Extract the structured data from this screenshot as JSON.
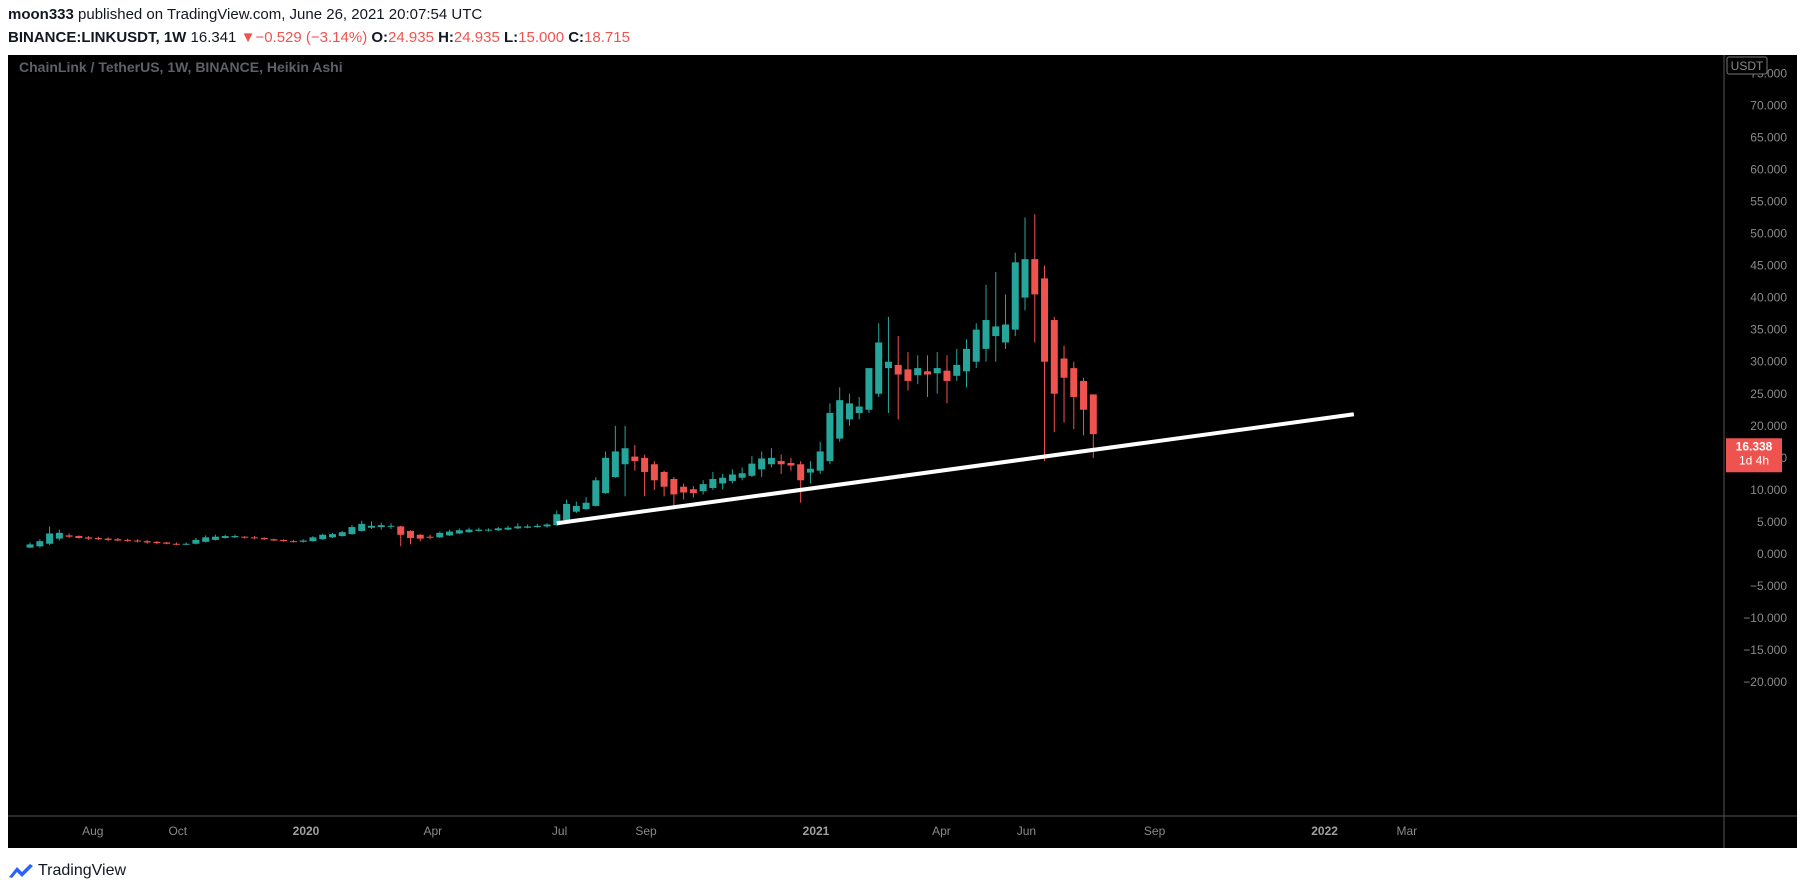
{
  "header": {
    "author": "moon333",
    "published_text": "published on TradingView.com, June 26, 2021 20:07:54 UTC",
    "symbol": "BINANCE:LINKUSDT,",
    "interval": "1W",
    "last_price": "16.341",
    "change_arrow": "▼",
    "change": "−0.529 (−3.14%)",
    "open_label": "O:",
    "open": "24.935",
    "high_label": "H:",
    "high": "24.935",
    "low_label": "L:",
    "low": "15.000",
    "close_label": "C:",
    "close": "18.715"
  },
  "chart_title": "ChainLink / TetherUS, 1W, BINANCE, Heikin Ashi",
  "currency_badge": "USDT",
  "price_badge": {
    "price": "16.338",
    "countdown": "1d 4h"
  },
  "footer": {
    "brand": "TradingView"
  },
  "colors": {
    "background": "#000000",
    "up": "#26a69a",
    "down": "#ef5350",
    "axis_text": "#8a8a8a",
    "trendline": "#ffffff"
  },
  "chart_data": {
    "type": "candlestick",
    "style": "Heikin Ashi",
    "title": "ChainLink / TetherUS, 1W, BINANCE, Heikin Ashi",
    "y_ticks": [
      "75.000",
      "70.000",
      "65.000",
      "60.000",
      "55.000",
      "50.000",
      "45.000",
      "40.000",
      "35.000",
      "30.000",
      "25.000",
      "20.000",
      "15.000",
      "10.000",
      "5.000",
      "0.000",
      "−5.000",
      "−10.000",
      "−15.000",
      "−20.000"
    ],
    "x_ticks": [
      {
        "label": "Aug",
        "bold": false,
        "date": "2019-08-01"
      },
      {
        "label": "Oct",
        "bold": false,
        "date": "2019-10-01"
      },
      {
        "label": "2020",
        "bold": true,
        "date": "2020-01-01"
      },
      {
        "label": "Apr",
        "bold": false,
        "date": "2020-04-01"
      },
      {
        "label": "Jul",
        "bold": false,
        "date": "2020-07-01"
      },
      {
        "label": "Sep",
        "bold": false,
        "date": "2020-09-01"
      },
      {
        "label": "2021",
        "bold": true,
        "date": "2021-01-01"
      },
      {
        "label": "Apr",
        "bold": false,
        "date": "2021-04-01"
      },
      {
        "label": "Jun",
        "bold": false,
        "date": "2021-06-01"
      },
      {
        "label": "Sep",
        "bold": false,
        "date": "2021-09-01"
      },
      {
        "label": "2022",
        "bold": true,
        "date": "2022-01-01"
      },
      {
        "label": "Mar",
        "bold": false,
        "date": "2022-03-01"
      }
    ],
    "ylim": [
      -23,
      78
    ],
    "candles": [
      {
        "d": "2019-06-17",
        "o": 1.0,
        "h": 1.8,
        "l": 0.9,
        "c": 1.5
      },
      {
        "d": "2019-06-24",
        "o": 1.2,
        "h": 2.3,
        "l": 1.0,
        "c": 2.0
      },
      {
        "d": "2019-07-01",
        "o": 1.6,
        "h": 4.3,
        "l": 1.4,
        "c": 3.2
      },
      {
        "d": "2019-07-08",
        "o": 2.4,
        "h": 3.8,
        "l": 2.1,
        "c": 3.3
      },
      {
        "d": "2019-07-15",
        "o": 2.9,
        "h": 3.2,
        "l": 2.5,
        "c": 2.7
      },
      {
        "d": "2019-07-22",
        "o": 2.8,
        "h": 2.9,
        "l": 2.4,
        "c": 2.5
      },
      {
        "d": "2019-07-29",
        "o": 2.6,
        "h": 2.8,
        "l": 2.2,
        "c": 2.4
      },
      {
        "d": "2019-08-05",
        "o": 2.5,
        "h": 2.7,
        "l": 2.2,
        "c": 2.3
      },
      {
        "d": "2019-08-12",
        "o": 2.4,
        "h": 2.6,
        "l": 2.0,
        "c": 2.2
      },
      {
        "d": "2019-08-19",
        "o": 2.3,
        "h": 2.5,
        "l": 2.0,
        "c": 2.1
      },
      {
        "d": "2019-08-26",
        "o": 2.2,
        "h": 2.4,
        "l": 1.9,
        "c": 2.1
      },
      {
        "d": "2019-09-02",
        "o": 2.1,
        "h": 2.3,
        "l": 1.8,
        "c": 2.0
      },
      {
        "d": "2019-09-09",
        "o": 2.0,
        "h": 2.2,
        "l": 1.6,
        "c": 1.8
      },
      {
        "d": "2019-09-16",
        "o": 1.9,
        "h": 2.0,
        "l": 1.5,
        "c": 1.7
      },
      {
        "d": "2019-09-23",
        "o": 1.8,
        "h": 1.9,
        "l": 1.5,
        "c": 1.6
      },
      {
        "d": "2019-09-30",
        "o": 1.6,
        "h": 1.8,
        "l": 1.4,
        "c": 1.5
      },
      {
        "d": "2019-10-07",
        "o": 1.5,
        "h": 1.8,
        "l": 1.4,
        "c": 1.6
      },
      {
        "d": "2019-10-14",
        "o": 1.6,
        "h": 2.5,
        "l": 1.5,
        "c": 2.2
      },
      {
        "d": "2019-10-21",
        "o": 1.9,
        "h": 2.9,
        "l": 1.8,
        "c": 2.6
      },
      {
        "d": "2019-10-28",
        "o": 2.2,
        "h": 3.0,
        "l": 2.1,
        "c": 2.7
      },
      {
        "d": "2019-11-04",
        "o": 2.5,
        "h": 3.0,
        "l": 2.4,
        "c": 2.8
      },
      {
        "d": "2019-11-11",
        "o": 2.6,
        "h": 3.0,
        "l": 2.5,
        "c": 2.8
      },
      {
        "d": "2019-11-18",
        "o": 2.7,
        "h": 2.8,
        "l": 2.4,
        "c": 2.6
      },
      {
        "d": "2019-11-25",
        "o": 2.6,
        "h": 2.8,
        "l": 2.3,
        "c": 2.5
      },
      {
        "d": "2019-12-02",
        "o": 2.5,
        "h": 2.6,
        "l": 2.2,
        "c": 2.3
      },
      {
        "d": "2019-12-09",
        "o": 2.3,
        "h": 2.4,
        "l": 2.0,
        "c": 2.1
      },
      {
        "d": "2019-12-16",
        "o": 2.2,
        "h": 2.3,
        "l": 1.9,
        "c": 2.0
      },
      {
        "d": "2019-12-23",
        "o": 2.0,
        "h": 2.2,
        "l": 1.8,
        "c": 1.9
      },
      {
        "d": "2019-12-30",
        "o": 1.9,
        "h": 2.3,
        "l": 1.8,
        "c": 2.1
      },
      {
        "d": "2020-01-06",
        "o": 2.0,
        "h": 2.8,
        "l": 1.9,
        "c": 2.6
      },
      {
        "d": "2020-01-13",
        "o": 2.3,
        "h": 3.2,
        "l": 2.2,
        "c": 3.0
      },
      {
        "d": "2020-01-20",
        "o": 2.6,
        "h": 3.3,
        "l": 2.5,
        "c": 3.1
      },
      {
        "d": "2020-01-27",
        "o": 2.8,
        "h": 3.6,
        "l": 2.7,
        "c": 3.4
      },
      {
        "d": "2020-02-03",
        "o": 3.1,
        "h": 4.5,
        "l": 3.0,
        "c": 4.2
      },
      {
        "d": "2020-02-10",
        "o": 3.6,
        "h": 5.2,
        "l": 3.5,
        "c": 4.7
      },
      {
        "d": "2020-02-17",
        "o": 4.1,
        "h": 5.1,
        "l": 3.9,
        "c": 4.4
      },
      {
        "d": "2020-02-24",
        "o": 4.2,
        "h": 4.9,
        "l": 3.8,
        "c": 4.5
      },
      {
        "d": "2020-03-02",
        "o": 4.3,
        "h": 4.8,
        "l": 3.9,
        "c": 4.4
      },
      {
        "d": "2020-03-09",
        "o": 4.3,
        "h": 4.4,
        "l": 1.2,
        "c": 3.0
      },
      {
        "d": "2020-03-16",
        "o": 3.6,
        "h": 3.7,
        "l": 1.5,
        "c": 2.5
      },
      {
        "d": "2020-03-23",
        "o": 3.0,
        "h": 3.1,
        "l": 2.0,
        "c": 2.4
      },
      {
        "d": "2020-03-30",
        "o": 2.7,
        "h": 3.0,
        "l": 2.3,
        "c": 2.6
      },
      {
        "d": "2020-04-06",
        "o": 2.6,
        "h": 3.5,
        "l": 2.5,
        "c": 3.3
      },
      {
        "d": "2020-04-13",
        "o": 2.9,
        "h": 3.8,
        "l": 2.8,
        "c": 3.5
      },
      {
        "d": "2020-04-20",
        "o": 3.2,
        "h": 4.0,
        "l": 3.1,
        "c": 3.7
      },
      {
        "d": "2020-04-27",
        "o": 3.4,
        "h": 4.1,
        "l": 3.3,
        "c": 3.8
      },
      {
        "d": "2020-05-04",
        "o": 3.6,
        "h": 4.1,
        "l": 3.5,
        "c": 3.8
      },
      {
        "d": "2020-05-11",
        "o": 3.7,
        "h": 4.0,
        "l": 3.5,
        "c": 3.8
      },
      {
        "d": "2020-05-18",
        "o": 3.7,
        "h": 4.2,
        "l": 3.6,
        "c": 4.0
      },
      {
        "d": "2020-05-25",
        "o": 3.8,
        "h": 4.4,
        "l": 3.7,
        "c": 4.1
      },
      {
        "d": "2020-06-01",
        "o": 4.0,
        "h": 4.8,
        "l": 3.9,
        "c": 4.3
      },
      {
        "d": "2020-06-08",
        "o": 4.1,
        "h": 4.6,
        "l": 4.0,
        "c": 4.3
      },
      {
        "d": "2020-06-15",
        "o": 4.2,
        "h": 4.7,
        "l": 4.1,
        "c": 4.4
      },
      {
        "d": "2020-06-22",
        "o": 4.3,
        "h": 4.8,
        "l": 4.1,
        "c": 4.6
      },
      {
        "d": "2020-06-29",
        "o": 4.5,
        "h": 6.8,
        "l": 4.4,
        "c": 6.2
      },
      {
        "d": "2020-07-06",
        "o": 5.3,
        "h": 8.5,
        "l": 5.2,
        "c": 7.8
      },
      {
        "d": "2020-07-13",
        "o": 6.6,
        "h": 8.2,
        "l": 6.4,
        "c": 7.5
      },
      {
        "d": "2020-07-20",
        "o": 7.0,
        "h": 8.9,
        "l": 6.9,
        "c": 8.0
      },
      {
        "d": "2020-07-27",
        "o": 7.5,
        "h": 12.0,
        "l": 7.4,
        "c": 11.5
      },
      {
        "d": "2020-08-03",
        "o": 9.5,
        "h": 16.0,
        "l": 9.4,
        "c": 15.0
      },
      {
        "d": "2020-08-10",
        "o": 12.0,
        "h": 20.0,
        "l": 11.9,
        "c": 16.0
      },
      {
        "d": "2020-08-17",
        "o": 14.0,
        "h": 20.0,
        "l": 9.0,
        "c": 16.5
      },
      {
        "d": "2020-08-24",
        "o": 15.2,
        "h": 17.0,
        "l": 13.0,
        "c": 14.5
      },
      {
        "d": "2020-08-31",
        "o": 15.0,
        "h": 15.5,
        "l": 9.0,
        "c": 12.8
      },
      {
        "d": "2020-09-07",
        "o": 14.0,
        "h": 14.5,
        "l": 10.0,
        "c": 11.5
      },
      {
        "d": "2020-09-14",
        "o": 12.8,
        "h": 13.0,
        "l": 9.0,
        "c": 10.5
      },
      {
        "d": "2020-09-21",
        "o": 11.7,
        "h": 12.0,
        "l": 7.0,
        "c": 9.3
      },
      {
        "d": "2020-09-28",
        "o": 10.5,
        "h": 11.0,
        "l": 8.5,
        "c": 9.6
      },
      {
        "d": "2020-10-05",
        "o": 10.1,
        "h": 10.6,
        "l": 8.8,
        "c": 9.5
      },
      {
        "d": "2020-10-12",
        "o": 9.8,
        "h": 11.5,
        "l": 9.3,
        "c": 10.9
      },
      {
        "d": "2020-10-19",
        "o": 10.3,
        "h": 12.8,
        "l": 10.0,
        "c": 11.7
      },
      {
        "d": "2020-10-26",
        "o": 11.0,
        "h": 12.5,
        "l": 10.1,
        "c": 11.9
      },
      {
        "d": "2020-11-02",
        "o": 11.4,
        "h": 13.2,
        "l": 11.0,
        "c": 12.4
      },
      {
        "d": "2020-11-09",
        "o": 11.9,
        "h": 13.5,
        "l": 11.5,
        "c": 12.6
      },
      {
        "d": "2020-11-16",
        "o": 12.2,
        "h": 15.3,
        "l": 12.0,
        "c": 14.1
      },
      {
        "d": "2020-11-23",
        "o": 13.2,
        "h": 16.0,
        "l": 12.0,
        "c": 14.9
      },
      {
        "d": "2020-11-30",
        "o": 14.0,
        "h": 16.5,
        "l": 13.5,
        "c": 15.0
      },
      {
        "d": "2020-12-07",
        "o": 14.5,
        "h": 15.5,
        "l": 12.5,
        "c": 14.0
      },
      {
        "d": "2020-12-14",
        "o": 14.2,
        "h": 15.0,
        "l": 13.0,
        "c": 13.8
      },
      {
        "d": "2020-12-21",
        "o": 14.0,
        "h": 14.5,
        "l": 8.0,
        "c": 11.5
      },
      {
        "d": "2020-12-28",
        "o": 12.7,
        "h": 14.5,
        "l": 11.0,
        "c": 13.3
      },
      {
        "d": "2021-01-04",
        "o": 13.0,
        "h": 17.5,
        "l": 12.5,
        "c": 16.0
      },
      {
        "d": "2021-01-11",
        "o": 14.5,
        "h": 23.5,
        "l": 14.0,
        "c": 22.0
      },
      {
        "d": "2021-01-18",
        "o": 18.0,
        "h": 26.0,
        "l": 17.5,
        "c": 24.0
      },
      {
        "d": "2021-01-25",
        "o": 21.0,
        "h": 25.0,
        "l": 20.0,
        "c": 23.5
      },
      {
        "d": "2021-02-01",
        "o": 22.0,
        "h": 24.5,
        "l": 21.0,
        "c": 23.0
      },
      {
        "d": "2021-02-08",
        "o": 22.5,
        "h": 28.5,
        "l": 22.0,
        "c": 29.0
      },
      {
        "d": "2021-02-15",
        "o": 25.0,
        "h": 36.0,
        "l": 24.5,
        "c": 33.0
      },
      {
        "d": "2021-02-22",
        "o": 29.0,
        "h": 37.0,
        "l": 22.0,
        "c": 30.0
      },
      {
        "d": "2021-03-01",
        "o": 29.5,
        "h": 34.0,
        "l": 21.0,
        "c": 28.0
      },
      {
        "d": "2021-03-08",
        "o": 28.8,
        "h": 31.5,
        "l": 25.5,
        "c": 27.0
      },
      {
        "d": "2021-03-15",
        "o": 27.9,
        "h": 31.0,
        "l": 26.5,
        "c": 29.0
      },
      {
        "d": "2021-03-22",
        "o": 28.5,
        "h": 31.0,
        "l": 24.5,
        "c": 28.0
      },
      {
        "d": "2021-03-29",
        "o": 28.2,
        "h": 31.5,
        "l": 25.0,
        "c": 29.0
      },
      {
        "d": "2021-04-05",
        "o": 28.6,
        "h": 31.0,
        "l": 23.5,
        "c": 27.0
      },
      {
        "d": "2021-04-12",
        "o": 27.8,
        "h": 32.0,
        "l": 27.0,
        "c": 29.5
      },
      {
        "d": "2021-04-19",
        "o": 28.5,
        "h": 33.5,
        "l": 26.0,
        "c": 32.0
      },
      {
        "d": "2021-04-26",
        "o": 30.0,
        "h": 36.0,
        "l": 29.0,
        "c": 35.0
      },
      {
        "d": "2021-05-03",
        "o": 32.0,
        "h": 42.0,
        "l": 30.0,
        "c": 36.5
      },
      {
        "d": "2021-05-10",
        "o": 34.0,
        "h": 44.0,
        "l": 30.0,
        "c": 35.5
      },
      {
        "d": "2021-05-17",
        "o": 33.0,
        "h": 40.5,
        "l": 32.0,
        "c": 35.8
      },
      {
        "d": "2021-05-24",
        "o": 35.0,
        "h": 47.0,
        "l": 34.0,
        "c": 45.5
      },
      {
        "d": "2021-05-31",
        "o": 40.0,
        "h": 52.5,
        "l": 38.0,
        "c": 46.0
      },
      {
        "d": "2021-06-07",
        "o": 46.0,
        "h": 53.0,
        "l": 33.0,
        "c": 40.5
      },
      {
        "d": "2021-06-14",
        "o": 43.0,
        "h": 45.0,
        "l": 14.5,
        "c": 30.0
      },
      {
        "d": "2021-06-21",
        "o": 36.5,
        "h": 37.0,
        "l": 19.0,
        "c": 25.0
      },
      {
        "d": "2021-06-28",
        "o": 30.5,
        "h": 32.5,
        "l": 20.5,
        "c": 27.5
      },
      {
        "d": "2021-07-05",
        "o": 29.0,
        "h": 30.0,
        "l": 19.5,
        "c": 24.5
      },
      {
        "d": "2021-07-12",
        "o": 27.0,
        "h": 27.5,
        "l": 18.5,
        "c": 22.5
      },
      {
        "d": "2021-07-19",
        "o": 24.9,
        "h": 24.9,
        "l": 15.0,
        "c": 18.7
      }
    ],
    "trendline": {
      "from": {
        "date": "2020-06-29",
        "value": 4.8
      },
      "to": {
        "date": "2022-01-22",
        "value": 21.8
      },
      "color": "#ffffff"
    },
    "last_value_marker": 16.338
  }
}
